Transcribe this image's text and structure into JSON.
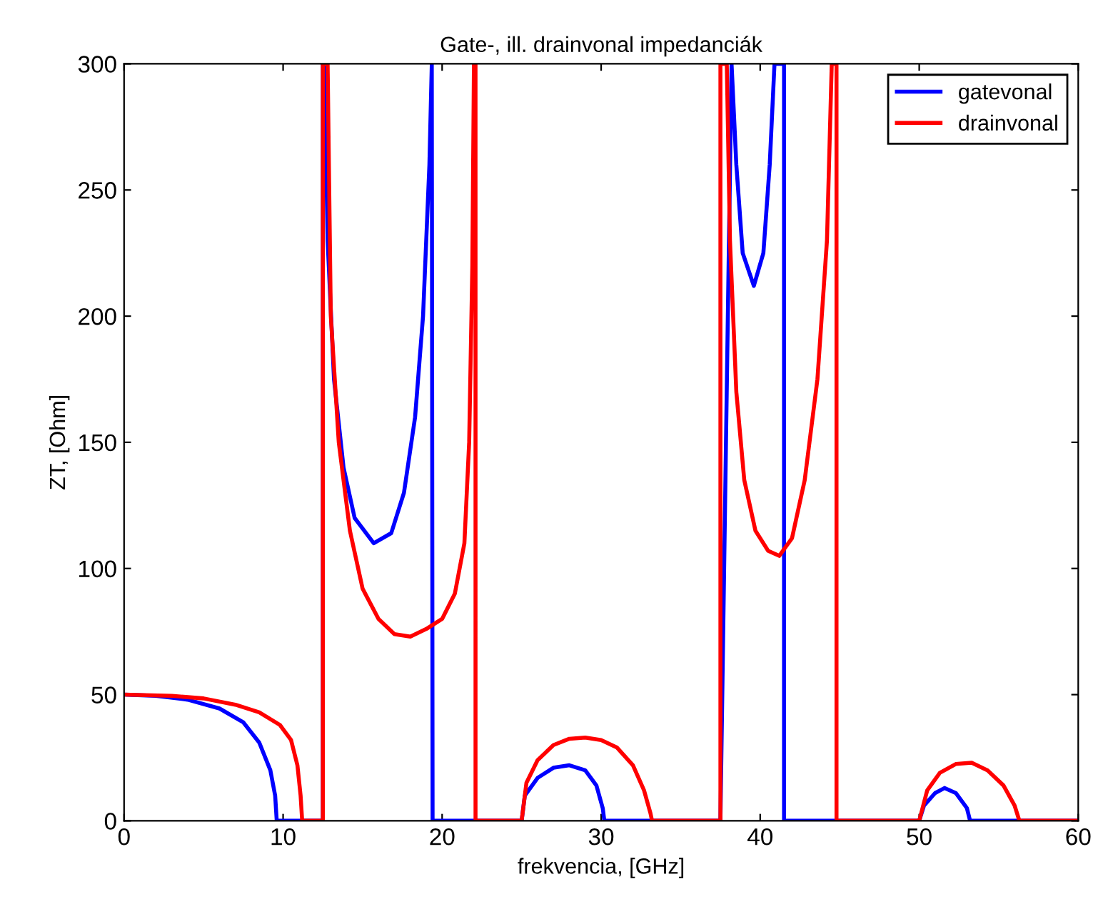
{
  "chart_data": {
    "type": "line",
    "title": "Gate-, ill. drainvonal impedanciák",
    "xlabel": "frekvencia, [GHz]",
    "ylabel": "ZT, [Ohm]",
    "xlim": [
      0,
      60
    ],
    "xticks": [
      0,
      10,
      20,
      30,
      40,
      50,
      60
    ],
    "ylim": [
      0,
      300
    ],
    "yticks": [
      0,
      50,
      100,
      150,
      200,
      250,
      300
    ],
    "grid": false,
    "legend": "top right",
    "line_style": "solid",
    "marker": "none",
    "series": [
      {
        "name": "gatevonal",
        "color": "#0000ff",
        "x": [
          0,
          2,
          4,
          6,
          7.5,
          8.5,
          9.2,
          9.5,
          9.6,
          12.5,
          12.5,
          12.6,
          12.8,
          13.2,
          13.8,
          14.5,
          15.7,
          16.8,
          17.6,
          18.3,
          18.8,
          19.2,
          19.35,
          19.4,
          25,
          25.2,
          26,
          27,
          28,
          29,
          29.7,
          30.1,
          30.2,
          37.5,
          38.2,
          38.5,
          38.9,
          39.6,
          40.2,
          40.6,
          40.9,
          41.5,
          41.5,
          50,
          50.3,
          51,
          51.6,
          52.3,
          53,
          53.2,
          60
        ],
        "values": [
          50,
          49.5,
          48,
          44.5,
          39,
          31,
          20,
          10,
          0,
          0,
          300,
          300,
          230,
          175,
          140,
          120,
          110,
          114,
          130,
          160,
          200,
          260,
          300,
          0,
          0,
          10,
          17,
          21,
          22,
          20,
          14,
          5,
          0,
          0,
          300,
          260,
          225,
          212,
          225,
          260,
          300,
          300,
          0,
          0,
          6,
          11,
          13,
          11,
          5,
          0,
          0
        ]
      },
      {
        "name": "drainvonal",
        "color": "#ff0000",
        "x": [
          0,
          3,
          5,
          7,
          8.5,
          9.8,
          10.5,
          10.9,
          11.1,
          11.2,
          12.5,
          12.5,
          12.8,
          13.0,
          13.5,
          14.2,
          15,
          16,
          17,
          18,
          19,
          20,
          20.8,
          21.4,
          21.7,
          21.9,
          22.0,
          22.1,
          22.1,
          25,
          25.3,
          26,
          27,
          28,
          29,
          30,
          31,
          32,
          32.7,
          33.1,
          33.2,
          37.5,
          37.5,
          37.9,
          38.1,
          38.5,
          39,
          39.7,
          40.5,
          41.2,
          42,
          42.8,
          43.6,
          44.2,
          44.5,
          44.8,
          44.8,
          50,
          50.5,
          51.3,
          52.3,
          53.3,
          54.3,
          55.3,
          56,
          56.3,
          60
        ],
        "values": [
          50,
          49.5,
          48.5,
          46,
          43,
          38,
          32,
          22,
          10,
          0,
          0,
          300,
          300,
          200,
          150,
          115,
          92,
          80,
          74,
          73,
          76,
          80,
          90,
          110,
          150,
          220,
          300,
          300,
          0,
          0,
          15,
          24,
          30,
          32.5,
          33,
          32,
          29,
          22,
          12,
          3,
          0,
          0,
          300,
          300,
          230,
          170,
          135,
          115,
          107,
          105,
          112,
          135,
          175,
          230,
          300,
          300,
          0,
          0,
          12,
          19,
          22.5,
          23,
          20,
          14,
          6,
          0,
          0
        ]
      }
    ]
  }
}
